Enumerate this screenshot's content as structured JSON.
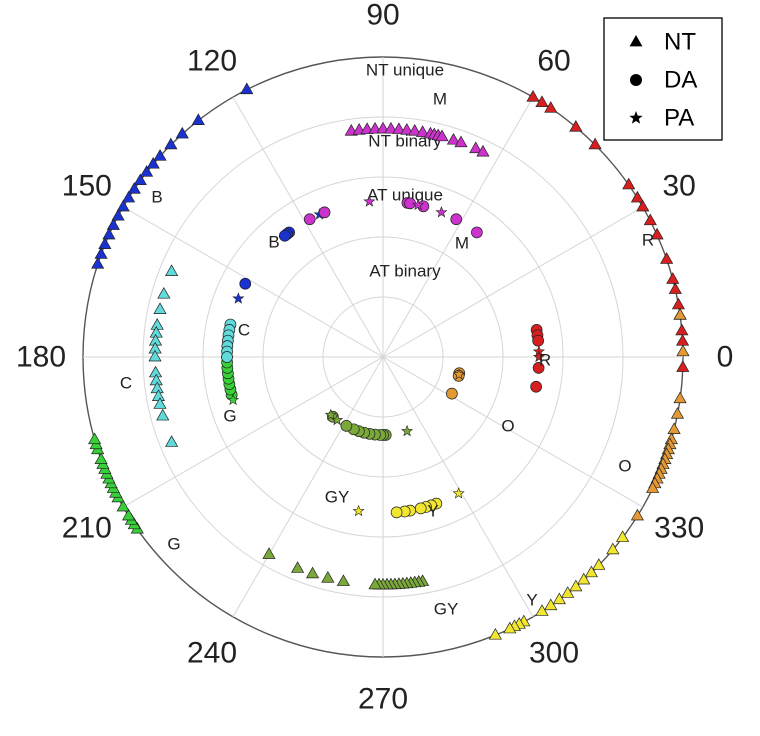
{
  "chart_data": {
    "type": "scatter",
    "projection": "polar",
    "theta_unit": "degrees",
    "theta_ticks": [
      "0",
      "30",
      "60",
      "90",
      "120",
      "150",
      "180",
      "210",
      "240",
      "300",
      "330",
      "270"
    ],
    "ring_labels": [
      "NT unique",
      "NT binary",
      "AT unique",
      "AT binary"
    ],
    "legend": [
      {
        "name": "NT",
        "marker": "triangle"
      },
      {
        "name": "DA",
        "marker": "circle"
      },
      {
        "name": "PA",
        "marker": "star"
      }
    ],
    "legend_position": "top-right",
    "grid": true,
    "colors": {
      "R": "#d62020",
      "O": "#e39a35",
      "Y": "#f2e630",
      "GY": "#7aa83a",
      "G": "#38d038",
      "C": "#60dada",
      "B": "#1a33d0",
      "M": "#cc33cc"
    },
    "category_labels": [
      "R",
      "O",
      "Y",
      "GY",
      "G",
      "C",
      "B",
      "M"
    ],
    "groups": [
      {
        "cat": "R",
        "radius": 1.0,
        "marker": "triangle",
        "theta": [
          60,
          58,
          56,
          50,
          45,
          35,
          32,
          30,
          27,
          24,
          19,
          15,
          13,
          10,
          8,
          5,
          3,
          -2
        ]
      },
      {
        "cat": "R",
        "radius": 0.52,
        "marker": "circle",
        "theta": [
          10,
          8,
          6,
          -4,
          -11
        ]
      },
      {
        "cat": "R",
        "radius": 0.52,
        "marker": "star",
        "theta": [
          2,
          0
        ]
      },
      {
        "cat": "O",
        "radius": 1.0,
        "marker": "triangle",
        "theta": [
          8,
          1,
          -8,
          -11,
          -14,
          -16,
          -17,
          -18,
          -19,
          -20,
          -21,
          -22,
          -23,
          -24,
          -25,
          -26,
          -32
        ]
      },
      {
        "cat": "O",
        "radius": 0.26,
        "marker": "circle",
        "theta": [
          -12,
          -14,
          -28
        ]
      },
      {
        "cat": "O",
        "radius": 0.26,
        "marker": "star",
        "theta": [
          -13
        ]
      },
      {
        "cat": "Y",
        "radius": 1.0,
        "marker": "triangle",
        "theta": [
          -37,
          -40,
          -44,
          -46,
          -48,
          -50,
          -52,
          -54,
          -56,
          -58,
          -62,
          -63,
          -64,
          -65,
          -68
        ]
      },
      {
        "cat": "Y",
        "radius": 0.52,
        "marker": "circle",
        "theta": [
          -70,
          -72,
          -74,
          -76,
          -80,
          -82,
          -85
        ]
      },
      {
        "cat": "Y",
        "radius": 0.52,
        "marker": "star",
        "theta": [
          -61,
          -99
        ]
      },
      {
        "cat": "GY",
        "radius": 0.76,
        "marker": "triangle",
        "theta": [
          -80,
          -81,
          -82,
          -83,
          -84,
          -85,
          -86,
          -87,
          -88,
          -89,
          -90,
          -91,
          -92,
          -100,
          -104,
          -108,
          -112,
          -120
        ]
      },
      {
        "cat": "GY",
        "radius": 0.26,
        "marker": "circle",
        "theta": [
          -88,
          -90,
          -92,
          -96,
          -100,
          -104,
          -108,
          -112,
          -118,
          -130
        ]
      },
      {
        "cat": "GY",
        "radius": 0.26,
        "marker": "star",
        "theta": [
          -72,
          -126,
          -132
        ]
      },
      {
        "cat": "G",
        "radius": 1.0,
        "marker": "triangle",
        "theta": [
          -145,
          -146,
          -147,
          -148,
          -150,
          -152,
          -153,
          -154,
          -155,
          -156,
          -157,
          -158,
          -159,
          -160,
          -162,
          -163,
          -164
        ]
      },
      {
        "cat": "G",
        "radius": 0.52,
        "marker": "circle",
        "theta": [
          -166,
          -168,
          -170,
          -172,
          -174,
          -176,
          -178,
          -180
        ]
      },
      {
        "cat": "G",
        "radius": 0.52,
        "marker": "star",
        "theta": [
          -164
        ]
      },
      {
        "cat": "C",
        "radius": 0.76,
        "marker": "triangle",
        "theta": [
          158,
          164,
          168,
          172,
          174,
          176,
          178,
          180,
          -176,
          -174,
          -172,
          -170,
          -168,
          -165,
          -158
        ]
      },
      {
        "cat": "C",
        "radius": 0.52,
        "marker": "circle",
        "theta": [
          168,
          170,
          172,
          174,
          176,
          178,
          180
        ]
      },
      {
        "cat": "B",
        "radius": 1.0,
        "marker": "triangle",
        "theta": [
          117,
          128,
          132,
          135,
          138,
          140,
          142,
          144,
          146,
          148,
          150,
          152,
          154,
          156,
          158,
          160,
          162
        ]
      },
      {
        "cat": "B",
        "radius": 0.52,
        "marker": "circle",
        "theta": [
          127,
          128,
          129,
          152
        ]
      },
      {
        "cat": "B",
        "radius": 0.52,
        "marker": "star",
        "theta": [
          114,
          158
        ]
      },
      {
        "cat": "M",
        "radius": 0.76,
        "marker": "triangle",
        "theta": [
          98,
          96,
          94,
          92,
          90,
          88,
          86,
          84,
          82,
          80,
          78,
          77,
          76,
          75,
          72,
          70,
          66,
          64
        ]
      },
      {
        "cat": "M",
        "radius": 0.52,
        "marker": "circle",
        "theta": [
          118,
          112,
          81,
          80,
          75,
          62,
          53
        ]
      },
      {
        "cat": "M",
        "radius": 0.52,
        "marker": "star",
        "theta": [
          95,
          77,
          68
        ]
      }
    ]
  }
}
